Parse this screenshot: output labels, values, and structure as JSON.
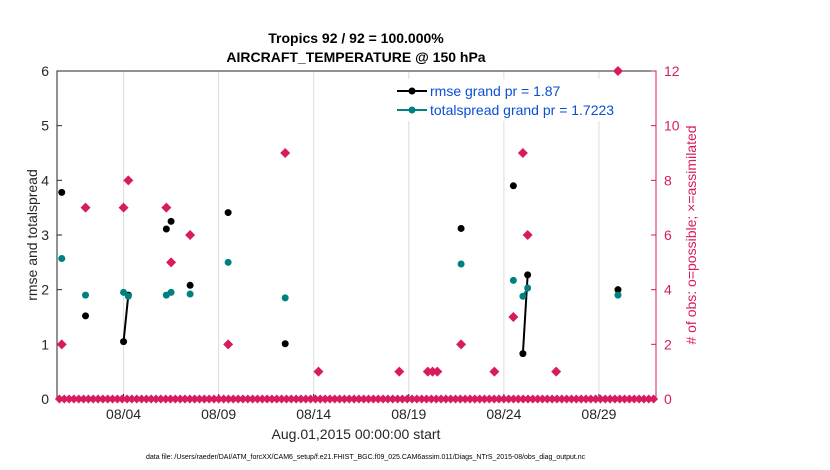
{
  "chart_data": {
    "type": "line",
    "title": "Tropics 92 / 92 = 100.000%",
    "subtitle": "AIRCRAFT_TEMPERATURE @ 150 hPa",
    "ylabel": "rmse and totalspread",
    "y2label": "# of obs: o=possible; ×=assimilated",
    "xlabel": "Aug.01,2015 00:00:00 start",
    "footnote": "data file: /Users/raeder/DAI/ATM_forcXX/CAM6_setup/f.e21.FHIST_BGC.f09_025.CAM6assim.011/Diags_NTrS_2015-08/obs_diag_output.nc",
    "ylim": [
      0,
      6
    ],
    "y2lim": [
      0,
      12
    ],
    "xlim": [
      0,
      31.5
    ],
    "x_ticks": [
      {
        "x": 3.5,
        "label": "08/04"
      },
      {
        "x": 8.5,
        "label": "08/09"
      },
      {
        "x": 13.5,
        "label": "08/14"
      },
      {
        "x": 18.5,
        "label": "08/19"
      },
      {
        "x": 23.5,
        "label": "08/24"
      },
      {
        "x": 28.5,
        "label": "08/29"
      }
    ],
    "y_ticks": [
      "0",
      "1",
      "2",
      "3",
      "4",
      "5",
      "6"
    ],
    "y2_ticks": [
      "0",
      "2",
      "4",
      "6",
      "8",
      "10",
      "12"
    ],
    "grid": true,
    "legend_position": "top-right",
    "colors": {
      "rmse": "#000000",
      "spread": "#008080",
      "obs": "#d81b60",
      "legend_text": "#0a4fd6"
    },
    "series": [
      {
        "name": "rmse grand pr = 1.87",
        "x": [
          0.25,
          1.5,
          3.5,
          3.75,
          5.75,
          6.0,
          7.0,
          9.0,
          12.0,
          21.25,
          24.0,
          24.5,
          24.75,
          29.5
        ],
        "y": [
          3.78,
          1.52,
          1.05,
          1.9,
          3.11,
          3.25,
          2.08,
          3.41,
          1.01,
          3.12,
          3.9,
          0.83,
          2.27,
          2.0
        ],
        "segments": [
          [
            3.5,
            3.75
          ],
          [
            24.5,
            24.75
          ]
        ]
      },
      {
        "name": "totalspread grand pr = 1.7223",
        "x": [
          0.25,
          1.5,
          3.5,
          3.75,
          5.75,
          6.0,
          7.0,
          9.0,
          12.0,
          21.25,
          24.0,
          24.5,
          24.75,
          29.5
        ],
        "y": [
          2.57,
          1.9,
          1.95,
          1.88,
          1.9,
          1.95,
          1.92,
          2.5,
          1.85,
          2.47,
          2.17,
          1.88,
          2.03,
          1.9
        ],
        "segments": [
          [
            24.5,
            24.75
          ]
        ]
      }
    ],
    "obs_possible": {
      "x": [
        0.25,
        1.5,
        3.5,
        3.75,
        5.75,
        6.0,
        7.0,
        9.0,
        12.0,
        13.75,
        18.0,
        19.5,
        19.75,
        20.0,
        21.25,
        23.0,
        24.0,
        24.5,
        24.75,
        26.25,
        29.5
      ],
      "y": [
        2,
        7,
        7,
        8,
        7,
        5,
        6,
        2,
        9,
        1,
        1,
        1,
        1,
        1,
        2,
        1,
        3,
        9,
        6,
        1,
        12
      ]
    },
    "obs_zero_bins": 124
  }
}
